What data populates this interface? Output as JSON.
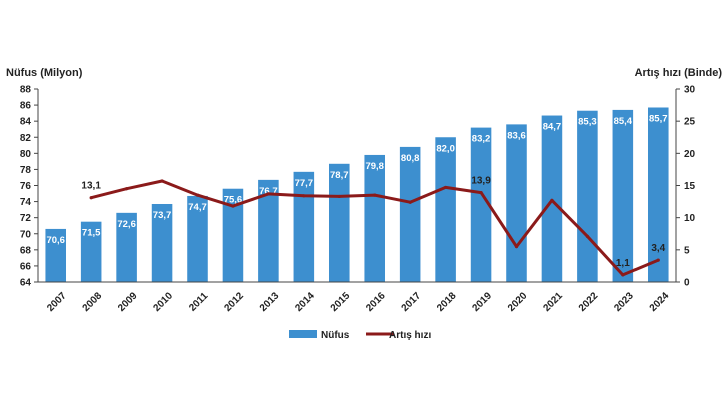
{
  "chart_data": {
    "type": "bar+line",
    "categories": [
      "2007",
      "2008",
      "2009",
      "2010",
      "2011",
      "2012",
      "2013",
      "2014",
      "2015",
      "2016",
      "2017",
      "2018",
      "2019",
      "2020",
      "2021",
      "2022",
      "2023",
      "2024"
    ],
    "series": [
      {
        "name": "Nüfus",
        "type": "bar",
        "axis": "left",
        "color": "#3d8fcf",
        "values": [
          70.6,
          71.5,
          72.6,
          73.7,
          74.7,
          75.6,
          76.7,
          77.7,
          78.7,
          79.8,
          80.8,
          82.0,
          83.2,
          83.6,
          84.7,
          85.3,
          85.4,
          85.7
        ],
        "labels": [
          "70,6",
          "71,5",
          "72,6",
          "73,7",
          "74,7",
          "75,6",
          "76,7",
          "77,7",
          "78,7",
          "79,8",
          "80,8",
          "82,0",
          "83,2",
          "83,6",
          "84,7",
          "85,3",
          "85,4",
          "85,7"
        ]
      },
      {
        "name": "Artış hızı",
        "type": "line",
        "axis": "right",
        "color": "#8b1a1a",
        "values": [
          null,
          13.1,
          14.5,
          15.7,
          13.5,
          11.8,
          13.7,
          13.4,
          13.3,
          13.5,
          12.4,
          14.7,
          13.9,
          5.5,
          12.7,
          7.1,
          1.1,
          3.4
        ],
        "labels": {
          "2008": "13,1",
          "2019": "13,9",
          "2023": "1,1",
          "2024": "3,4"
        }
      }
    ],
    "y_left": {
      "label": "Nüfus (Milyon)",
      "min": 64,
      "max": 88,
      "step": 2,
      "ticks": [
        "64",
        "66",
        "68",
        "70",
        "72",
        "74",
        "76",
        "78",
        "80",
        "82",
        "84",
        "86",
        "88"
      ]
    },
    "y_right": {
      "label": "Artış hızı (Binde)",
      "min": 0,
      "max": 30,
      "step": 5,
      "ticks": [
        "0",
        "5",
        "10",
        "15",
        "20",
        "25",
        "30"
      ]
    },
    "grid": false,
    "legend": {
      "position": "bottom",
      "items": [
        "Nüfus",
        "Artış hızı"
      ]
    }
  }
}
